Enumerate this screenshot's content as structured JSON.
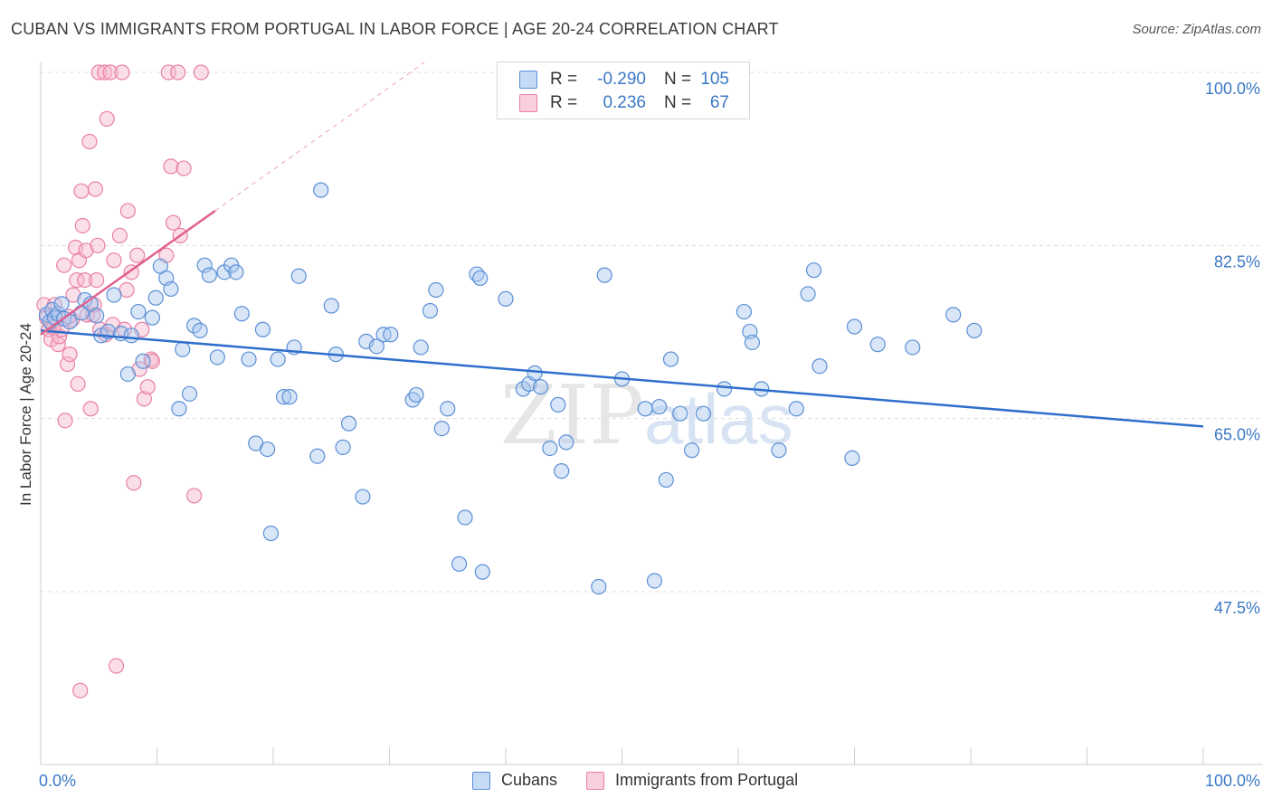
{
  "title": "CUBAN VS IMMIGRANTS FROM PORTUGAL IN LABOR FORCE | AGE 20-24 CORRELATION CHART",
  "source": "Source: ZipAtlas.com",
  "legend": {
    "rows": [
      {
        "r_label": "R =",
        "r_value": "-0.290",
        "n_label": "N =",
        "n_value": "105"
      },
      {
        "r_label": "R =",
        "r_value": "0.236",
        "n_label": "N =",
        "n_value": "67"
      }
    ]
  },
  "bottom_legend": {
    "series1": "Cubans",
    "series2": "Immigrants from Portugal"
  },
  "colors": {
    "blue_fill": "#a9c8ef",
    "blue_stroke": "#5b8fd6",
    "blue_line": "#2f6fcc",
    "pink_fill": "#f6b9cd",
    "pink_stroke": "#ea7fa3",
    "pink_line": "#e0608f",
    "tick_text": "#3b78c4"
  },
  "chart_data": {
    "type": "scatter",
    "title": "CUBAN VS IMMIGRANTS FROM PORTUGAL IN LABOR FORCE | AGE 20-24 CORRELATION CHART",
    "xlabel": "",
    "ylabel": "In Labor Force | Age 20-24",
    "xlim": [
      0,
      100
    ],
    "ylim": [
      30,
      102
    ],
    "x_tick_labels": [
      "0.0%",
      "100.0%"
    ],
    "y_ticks": [
      47.5,
      65.0,
      82.5,
      100.0
    ],
    "y_tick_labels": [
      "47.5%",
      "65.0%",
      "82.5%",
      "100.0%"
    ],
    "grid": true,
    "watermark": "ZIPatlas",
    "series": [
      {
        "name": "Cubans",
        "color": "#5b8fd6",
        "trend": {
          "x": [
            0,
            100
          ],
          "y": [
            73.9,
            64.2
          ]
        },
        "points": [
          [
            0.5,
            75.5
          ],
          [
            0.8,
            74.8
          ],
          [
            1.0,
            76.0
          ],
          [
            1.2,
            75.2
          ],
          [
            1.5,
            75.6
          ],
          [
            1.8,
            76.6
          ],
          [
            2.0,
            75.1
          ],
          [
            2.5,
            74.8
          ],
          [
            3.5,
            75.7
          ],
          [
            3.8,
            77.0
          ],
          [
            4.3,
            76.6
          ],
          [
            4.8,
            75.4
          ],
          [
            5.2,
            73.4
          ],
          [
            5.8,
            73.8
          ],
          [
            6.3,
            77.5
          ],
          [
            6.9,
            73.6
          ],
          [
            7.5,
            69.5
          ],
          [
            7.8,
            73.4
          ],
          [
            8.4,
            75.8
          ],
          [
            8.8,
            70.8
          ],
          [
            9.6,
            75.2
          ],
          [
            9.9,
            77.2
          ],
          [
            10.3,
            80.4
          ],
          [
            10.8,
            79.2
          ],
          [
            11.2,
            78.1
          ],
          [
            11.9,
            66.0
          ],
          [
            12.2,
            72.0
          ],
          [
            12.8,
            67.5
          ],
          [
            13.2,
            74.4
          ],
          [
            13.7,
            73.9
          ],
          [
            14.1,
            80.5
          ],
          [
            14.5,
            79.5
          ],
          [
            15.2,
            71.2
          ],
          [
            15.8,
            79.8
          ],
          [
            16.4,
            80.5
          ],
          [
            16.8,
            79.8
          ],
          [
            17.3,
            75.6
          ],
          [
            17.9,
            71.0
          ],
          [
            18.5,
            62.5
          ],
          [
            19.1,
            74.0
          ],
          [
            19.5,
            61.9
          ],
          [
            19.8,
            53.4
          ],
          [
            20.4,
            71.0
          ],
          [
            20.9,
            67.2
          ],
          [
            21.4,
            67.2
          ],
          [
            21.8,
            72.2
          ],
          [
            22.2,
            79.4
          ],
          [
            23.8,
            61.2
          ],
          [
            24.1,
            88.1
          ],
          [
            25.0,
            76.4
          ],
          [
            25.4,
            71.5
          ],
          [
            26.0,
            62.1
          ],
          [
            26.5,
            64.5
          ],
          [
            27.7,
            57.1
          ],
          [
            28.0,
            72.8
          ],
          [
            28.9,
            72.3
          ],
          [
            29.5,
            73.5
          ],
          [
            30.1,
            73.5
          ],
          [
            32.0,
            66.9
          ],
          [
            32.3,
            67.4
          ],
          [
            32.7,
            72.2
          ],
          [
            33.5,
            75.9
          ],
          [
            34.0,
            78.0
          ],
          [
            34.5,
            64.0
          ],
          [
            35.0,
            66.0
          ],
          [
            36.0,
            50.3
          ],
          [
            36.5,
            55.0
          ],
          [
            37.5,
            79.6
          ],
          [
            37.8,
            79.2
          ],
          [
            38.0,
            49.5
          ],
          [
            40.0,
            77.1
          ],
          [
            41.5,
            68.0
          ],
          [
            42.0,
            68.5
          ],
          [
            42.5,
            69.6
          ],
          [
            43.0,
            68.2
          ],
          [
            43.8,
            62.0
          ],
          [
            44.5,
            66.4
          ],
          [
            44.8,
            59.7
          ],
          [
            45.2,
            62.6
          ],
          [
            48.0,
            48.0
          ],
          [
            48.5,
            79.5
          ],
          [
            50.0,
            69.0
          ],
          [
            52.0,
            66.0
          ],
          [
            52.8,
            48.6
          ],
          [
            53.2,
            66.2
          ],
          [
            53.8,
            58.8
          ],
          [
            54.2,
            71.0
          ],
          [
            55.0,
            65.5
          ],
          [
            56.0,
            61.8
          ],
          [
            57.0,
            65.5
          ],
          [
            58.8,
            68.0
          ],
          [
            60.5,
            75.8
          ],
          [
            61.0,
            73.8
          ],
          [
            61.2,
            72.7
          ],
          [
            62.0,
            68.0
          ],
          [
            63.5,
            61.8
          ],
          [
            65.0,
            66.0
          ],
          [
            66.0,
            77.6
          ],
          [
            66.5,
            80.0
          ],
          [
            67.0,
            70.3
          ],
          [
            70.0,
            74.3
          ],
          [
            72.0,
            72.5
          ],
          [
            75.0,
            72.2
          ],
          [
            78.5,
            75.5
          ],
          [
            80.3,
            73.9
          ],
          [
            69.8,
            61.0
          ]
        ]
      },
      {
        "name": "Immigrants from Portugal",
        "color": "#ea7fa3",
        "trend": {
          "x": [
            0,
            15
          ],
          "y": [
            73.5,
            86.0
          ]
        },
        "points": [
          [
            0.3,
            76.5
          ],
          [
            0.5,
            75.2
          ],
          [
            0.7,
            74.0
          ],
          [
            0.9,
            73.0
          ],
          [
            1.0,
            74.7
          ],
          [
            1.2,
            76.5
          ],
          [
            1.3,
            75.2
          ],
          [
            1.5,
            72.5
          ],
          [
            1.6,
            73.3
          ],
          [
            1.8,
            74.0
          ],
          [
            2.0,
            80.5
          ],
          [
            2.1,
            64.8
          ],
          [
            2.3,
            70.5
          ],
          [
            2.5,
            71.5
          ],
          [
            2.7,
            75.0
          ],
          [
            2.8,
            77.5
          ],
          [
            3.0,
            82.3
          ],
          [
            3.1,
            79.0
          ],
          [
            3.2,
            68.5
          ],
          [
            3.3,
            81.0
          ],
          [
            3.5,
            88.0
          ],
          [
            3.6,
            84.5
          ],
          [
            3.8,
            79.0
          ],
          [
            3.9,
            82.0
          ],
          [
            4.0,
            75.5
          ],
          [
            4.2,
            93.0
          ],
          [
            4.3,
            66.0
          ],
          [
            4.5,
            75.5
          ],
          [
            4.6,
            76.5
          ],
          [
            4.7,
            88.2
          ],
          [
            4.8,
            79.0
          ],
          [
            4.9,
            82.5
          ],
          [
            5.0,
            100.0
          ],
          [
            5.1,
            74.0
          ],
          [
            5.5,
            100.0
          ],
          [
            5.6,
            73.5
          ],
          [
            5.7,
            95.3
          ],
          [
            6.0,
            100.0
          ],
          [
            6.2,
            74.5
          ],
          [
            6.3,
            81.0
          ],
          [
            6.5,
            40.0
          ],
          [
            6.8,
            83.5
          ],
          [
            7.0,
            100.0
          ],
          [
            7.2,
            74.0
          ],
          [
            7.4,
            78.0
          ],
          [
            7.5,
            86.0
          ],
          [
            7.8,
            79.8
          ],
          [
            8.0,
            58.5
          ],
          [
            8.3,
            81.5
          ],
          [
            8.5,
            70.0
          ],
          [
            8.7,
            74.0
          ],
          [
            8.9,
            67.0
          ],
          [
            9.2,
            68.2
          ],
          [
            9.5,
            71.0
          ],
          [
            9.6,
            70.8
          ],
          [
            10.8,
            81.5
          ],
          [
            11.0,
            100.0
          ],
          [
            11.2,
            90.5
          ],
          [
            11.4,
            84.8
          ],
          [
            11.8,
            100.0
          ],
          [
            12.0,
            83.5
          ],
          [
            12.3,
            90.3
          ],
          [
            13.2,
            57.2
          ],
          [
            13.8,
            100.0
          ],
          [
            3.4,
            37.5
          ],
          [
            1.1,
            74.2
          ],
          [
            2.4,
            75.3
          ]
        ]
      }
    ]
  }
}
